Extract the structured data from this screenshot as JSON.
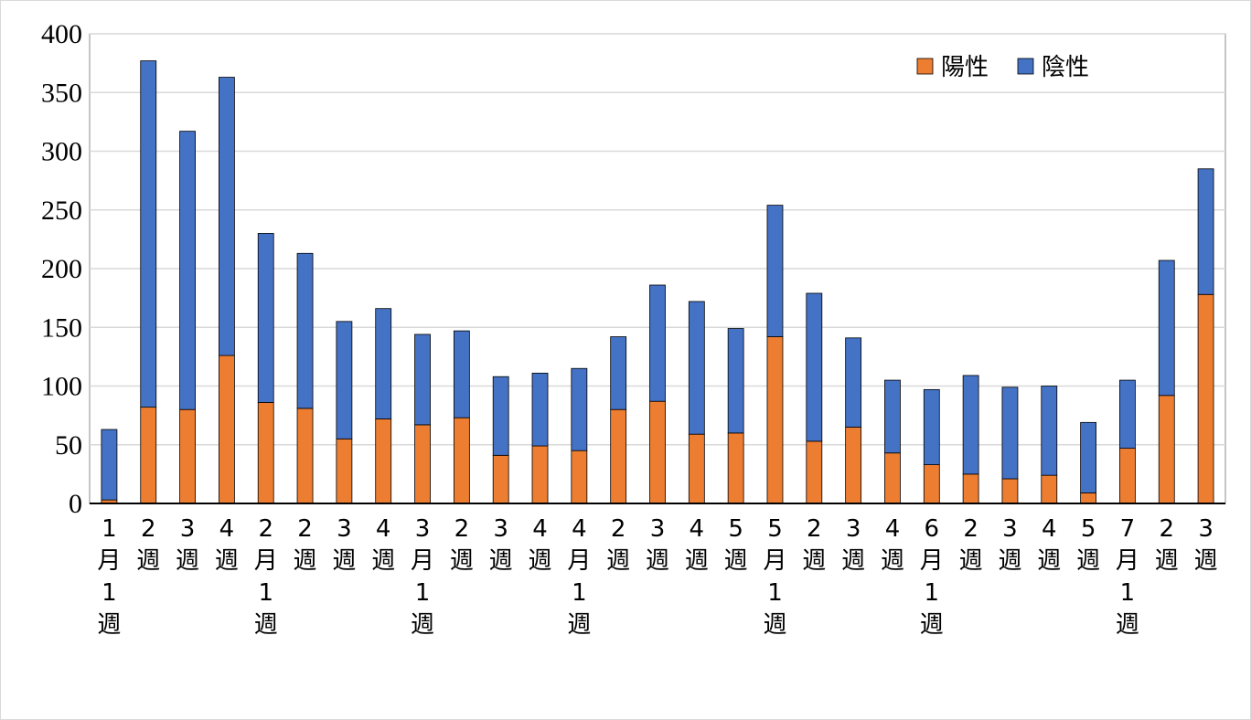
{
  "chart_data": {
    "type": "bar",
    "stacked": true,
    "title": "",
    "xlabel": "",
    "ylabel": "",
    "ylim": [
      0,
      400
    ],
    "yticks": [
      0,
      50,
      100,
      150,
      200,
      250,
      300,
      350,
      400
    ],
    "grid": true,
    "legend_position": "top-right",
    "categories": [
      "1月1週",
      "2週",
      "3週",
      "4週",
      "2月1週",
      "2週",
      "3週",
      "4週",
      "3月1週",
      "2週",
      "3週",
      "4週",
      "4月1週",
      "2週",
      "3週",
      "4週",
      "5週",
      "5月1週",
      "2週",
      "3週",
      "4週",
      "6月1週",
      "2週",
      "3週",
      "4週",
      "5週",
      "7月1週",
      "2週",
      "3週"
    ],
    "series": [
      {
        "name": "陽性",
        "color": "#ed7d31",
        "values": [
          3,
          82,
          80,
          126,
          86,
          81,
          55,
          72,
          67,
          73,
          41,
          49,
          45,
          80,
          87,
          59,
          60,
          142,
          53,
          65,
          43,
          33,
          25,
          21,
          24,
          9,
          47,
          92,
          178
        ]
      },
      {
        "name": "陰性",
        "color": "#4472c4",
        "values": [
          60,
          295,
          237,
          237,
          144,
          132,
          100,
          94,
          77,
          74,
          67,
          62,
          70,
          62,
          99,
          113,
          89,
          112,
          126,
          76,
          62,
          64,
          84,
          78,
          76,
          60,
          58,
          115,
          107
        ]
      }
    ]
  }
}
